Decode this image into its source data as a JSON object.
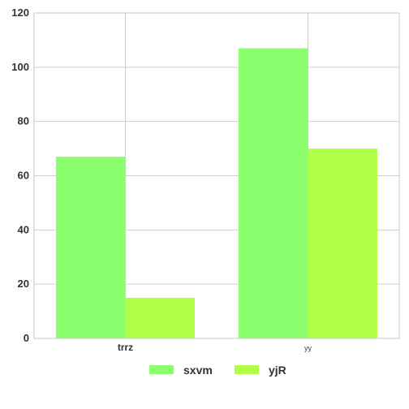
{
  "chart_data": {
    "type": "bar",
    "categories": [
      "trrz",
      "yy"
    ],
    "series": [
      {
        "name": "sxvm",
        "values": [
          67,
          107
        ],
        "color": "#8cff6e"
      },
      {
        "name": "yjR",
        "values": [
          15,
          70
        ],
        "color": "#b2ff4a"
      }
    ],
    "ylim": [
      0,
      120
    ],
    "yticks": [
      0,
      20,
      40,
      60,
      80,
      100,
      120
    ],
    "grid": true,
    "legend_position": "bottom-center",
    "title": "",
    "xlabel": "",
    "ylabel": ""
  }
}
